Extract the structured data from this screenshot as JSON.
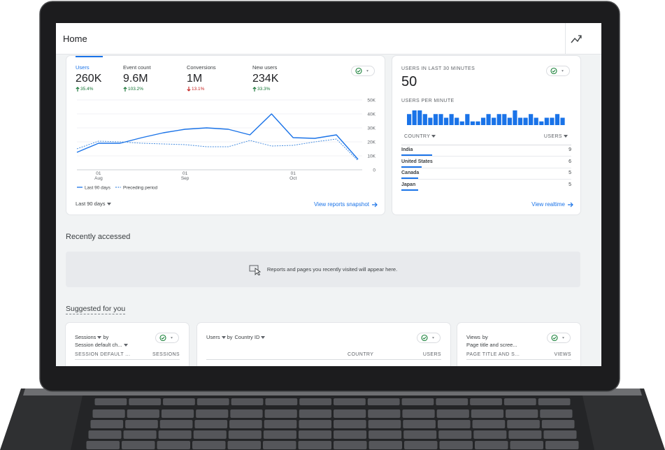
{
  "header": {
    "title": "Home"
  },
  "overview": {
    "metrics": [
      {
        "label": "Users",
        "value": "260K",
        "change": "35.4%",
        "trend": "up"
      },
      {
        "label": "Event count",
        "value": "9.6M",
        "change": "103.2%",
        "trend": "up"
      },
      {
        "label": "Conversions",
        "value": "1M",
        "change": "13.1%",
        "trend": "down"
      },
      {
        "label": "New users",
        "value": "234K",
        "change": "33.3%",
        "trend": "up"
      }
    ],
    "chart": {
      "type": "line",
      "categories": [
        null,
        "01\nAug",
        null,
        null,
        null,
        "01\nSep",
        null,
        null,
        null,
        null,
        "01\nOct",
        null,
        null,
        null
      ],
      "series": [
        {
          "name": "Last 90 days",
          "color": "#1a73e8",
          "style": "solid",
          "values": [
            12500,
            19000,
            19000,
            23000,
            26500,
            29000,
            30000,
            29000,
            25000,
            40000,
            23000,
            22500,
            25000,
            7500
          ]
        },
        {
          "name": "Preceding period",
          "color": "#4a8fe0",
          "style": "dashed",
          "values": [
            15000,
            20500,
            20000,
            19000,
            18500,
            18000,
            16500,
            16500,
            21000,
            17000,
            17500,
            20000,
            22000,
            6500
          ]
        }
      ],
      "ylim": [
        0,
        50000
      ],
      "yticks": [
        0,
        {
          "value": 10000,
          "label": "10K"
        },
        {
          "value": 20000,
          "label": "20K"
        },
        {
          "value": 30000,
          "label": "30K"
        },
        {
          "value": 40000,
          "label": "40K"
        },
        {
          "value": 50000,
          "label": "50K"
        }
      ],
      "grid": true
    },
    "date_range": "Last 90 days",
    "link": "View reports snapshot"
  },
  "realtime": {
    "title": "USERS IN LAST 30 MINUTES",
    "value": 50,
    "per_minute": {
      "title": "USERS PER MINUTE",
      "type": "bar",
      "color": "#1a73e8",
      "values": [
        3,
        4,
        4,
        3,
        2,
        3,
        3,
        2,
        3,
        2,
        1,
        3,
        1,
        1,
        2,
        3,
        2,
        3,
        3,
        2,
        4,
        2,
        2,
        3,
        2,
        1,
        2,
        2,
        3,
        2
      ]
    },
    "table": {
      "columns": [
        "COUNTRY",
        "USERS"
      ],
      "rows": [
        {
          "country": "India",
          "users": 9
        },
        {
          "country": "United States",
          "users": 6
        },
        {
          "country": "Canada",
          "users": 5
        },
        {
          "country": "Japan",
          "users": 5
        }
      ]
    },
    "link": "View realtime"
  },
  "recent": {
    "title": "Recently accessed",
    "empty_message": "Reports and pages you recently visited will appear here."
  },
  "suggested": {
    "title": "Suggested for you",
    "cards": [
      {
        "metric": "Sessions",
        "by": "by",
        "dimension": "Session default ch...",
        "columns": [
          "SESSION DEFAULT ...",
          "SESSIONS"
        ]
      },
      {
        "metric": "Users",
        "by": "by",
        "dimension": "Country ID",
        "columns": [
          "COUNTRY",
          "USERS"
        ]
      },
      {
        "metric": "Views",
        "by": "by",
        "dimension": "Page title and scree...",
        "columns": [
          "PAGE TITLE AND S...",
          "VIEWS"
        ]
      }
    ]
  }
}
